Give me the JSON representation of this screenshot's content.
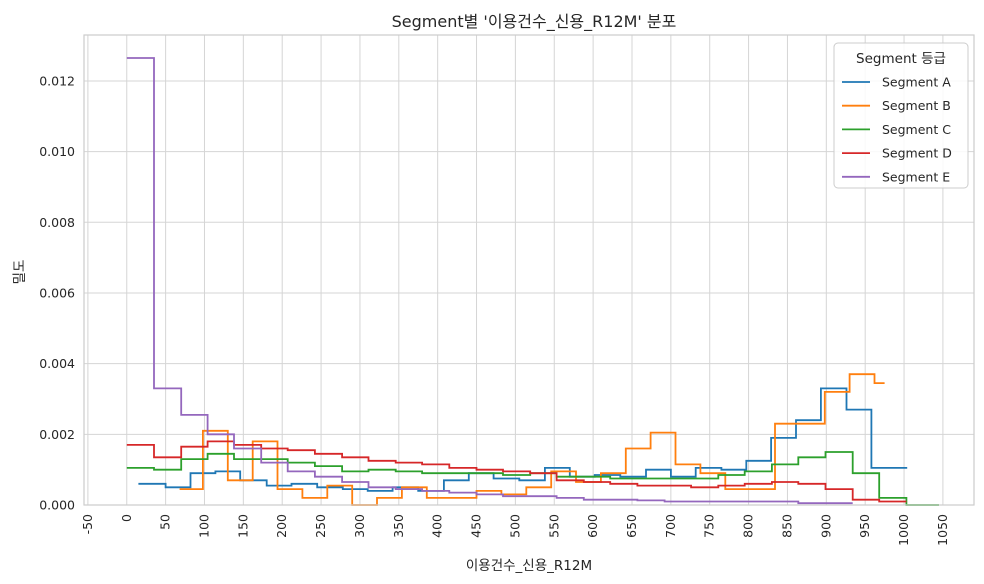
{
  "chart_data": {
    "type": "step",
    "title": "Segment별 '이용건수_신용_R12M' 분포",
    "xlabel": "이용건수_신용_R12M",
    "ylabel": "밀도",
    "xlim": [
      -55,
      1090
    ],
    "ylim": [
      0,
      0.0133
    ],
    "xticks": [
      -50,
      0,
      50,
      100,
      150,
      200,
      250,
      300,
      350,
      400,
      450,
      500,
      550,
      600,
      650,
      700,
      750,
      800,
      850,
      900,
      950,
      1000,
      1050
    ],
    "yticks": [
      0.0,
      0.002,
      0.004,
      0.006,
      0.008,
      0.01,
      0.012
    ],
    "ytick_labels": [
      "0.000",
      "0.002",
      "0.004",
      "0.006",
      "0.008",
      "0.010",
      "0.012"
    ],
    "grid": true,
    "legend": {
      "title": "Segment 등급",
      "position": "top-right"
    },
    "series": [
      {
        "name": "Segment A",
        "color": "#1f77b4",
        "edges": [
          15,
          50,
          82,
          114,
          146,
          180,
          212,
          245,
          278,
          310,
          342,
          375,
          408,
          440,
          472,
          505,
          538,
          570,
          602,
          635,
          668,
          700,
          732,
          765,
          797,
          829,
          861,
          893,
          926,
          958,
          990,
          1004
        ],
        "values": [
          0.0006,
          0.0005,
          0.0009,
          0.00095,
          0.0007,
          0.00055,
          0.0006,
          0.0005,
          0.00045,
          0.0004,
          0.0005,
          0.0004,
          0.0007,
          0.0009,
          0.00075,
          0.0007,
          0.00105,
          0.0008,
          0.00085,
          0.0008,
          0.001,
          0.0008,
          0.00105,
          0.001,
          0.00125,
          0.0019,
          0.0024,
          0.0033,
          0.0027,
          0.00105,
          0.00105
        ]
      },
      {
        "name": "Segment B",
        "color": "#ff7f0e",
        "edges": [
          68,
          98,
          130,
          162,
          194,
          226,
          258,
          290,
          322,
          354,
          386,
          418,
          450,
          482,
          514,
          546,
          578,
          610,
          642,
          674,
          706,
          738,
          770,
          802,
          834,
          866,
          898,
          930,
          962,
          975
        ],
        "values": [
          0.00045,
          0.0021,
          0.0007,
          0.0018,
          0.00045,
          0.0002,
          0.00055,
          0.0,
          0.0002,
          0.0005,
          0.0002,
          0.0002,
          0.0004,
          0.0003,
          0.0005,
          0.00095,
          0.00065,
          0.0009,
          0.0016,
          0.00205,
          0.00115,
          0.0009,
          0.00045,
          0.00045,
          0.0023,
          0.0023,
          0.0032,
          0.0037,
          0.00345,
          0.00345
        ]
      },
      {
        "name": "Segment C",
        "color": "#2ca02c",
        "edges": [
          0,
          35,
          70,
          104,
          138,
          173,
          207,
          242,
          277,
          311,
          346,
          380,
          415,
          450,
          484,
          519,
          553,
          588,
          622,
          657,
          692,
          726,
          761,
          795,
          830,
          864,
          899,
          934,
          968,
          1003,
          1045
        ],
        "values": [
          0.00105,
          0.001,
          0.0013,
          0.00145,
          0.0013,
          0.0013,
          0.0012,
          0.0011,
          0.00095,
          0.001,
          0.00095,
          0.0009,
          0.0009,
          0.0009,
          0.00085,
          0.0009,
          0.0008,
          0.0008,
          0.00075,
          0.00075,
          0.00075,
          0.00075,
          0.00085,
          0.00095,
          0.00115,
          0.00135,
          0.0015,
          0.0009,
          0.0002,
          0.0,
          0.0
        ]
      },
      {
        "name": "Segment D",
        "color": "#d62728",
        "edges": [
          0,
          35,
          70,
          104,
          138,
          173,
          207,
          242,
          277,
          311,
          346,
          380,
          415,
          450,
          484,
          519,
          553,
          588,
          622,
          657,
          692,
          726,
          761,
          795,
          830,
          864,
          899,
          934,
          968,
          1003
        ],
        "values": [
          0.0017,
          0.00135,
          0.00165,
          0.0018,
          0.0017,
          0.0016,
          0.00155,
          0.00145,
          0.00135,
          0.00125,
          0.0012,
          0.00115,
          0.00105,
          0.001,
          0.00095,
          0.0009,
          0.0007,
          0.00065,
          0.0006,
          0.00055,
          0.00055,
          0.0005,
          0.00055,
          0.0006,
          0.00065,
          0.0006,
          0.00045,
          0.00015,
          0.0001,
          0.0001
        ]
      },
      {
        "name": "Segment E",
        "color": "#9467bd",
        "edges": [
          0,
          35,
          70,
          104,
          138,
          173,
          207,
          242,
          277,
          311,
          346,
          380,
          415,
          450,
          484,
          519,
          553,
          588,
          622,
          657,
          692,
          726,
          761,
          795,
          830,
          864,
          899,
          934
        ],
        "values": [
          0.01265,
          0.0033,
          0.00255,
          0.002,
          0.0016,
          0.0012,
          0.00095,
          0.0008,
          0.00065,
          0.0005,
          0.00045,
          0.0004,
          0.00035,
          0.0003,
          0.00025,
          0.00025,
          0.0002,
          0.00015,
          0.00015,
          0.00013,
          0.0001,
          0.0001,
          0.0001,
          0.0001,
          0.0001,
          5e-05,
          5e-05,
          5e-05
        ]
      }
    ]
  }
}
